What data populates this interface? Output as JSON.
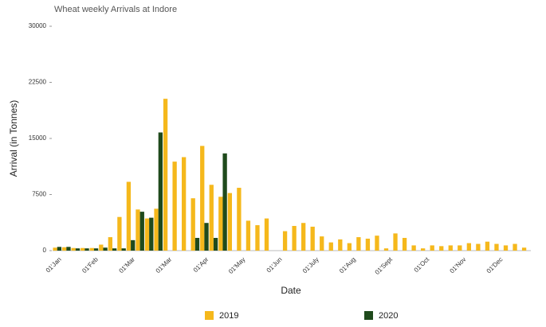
{
  "chart_data": {
    "type": "bar",
    "title": "Wheat weekly Arrivals at Indore",
    "x_label": "Date",
    "y_label": "Arrival (in Tonnes)",
    "categories": [
      "01'Jan",
      null,
      null,
      null,
      "01'Feb",
      null,
      null,
      null,
      "01'Mar",
      null,
      null,
      null,
      "01'Mar",
      null,
      null,
      null,
      "01'Apr",
      null,
      null,
      null,
      "01'May",
      null,
      null,
      null,
      "01'Jun",
      null,
      null,
      null,
      "01'July",
      null,
      null,
      null,
      "01'Aug",
      null,
      null,
      null,
      "01'Sept",
      null,
      null,
      null,
      "01'Oct",
      null,
      null,
      null,
      "01'Nov",
      null,
      null,
      null,
      "01'Dec",
      null,
      null,
      null
    ],
    "series": [
      {
        "name": "2019",
        "color": "#f5b81c",
        "values": [
          400,
          450,
          350,
          350,
          350,
          800,
          1800,
          4500,
          9200,
          5500,
          4300,
          5600,
          20300,
          11900,
          12500,
          7000,
          14000,
          8800,
          7200,
          7700,
          8400,
          4000,
          3400,
          4300,
          0,
          2600,
          3300,
          3700,
          3200,
          1900,
          1100,
          1500,
          1000,
          1800,
          1600,
          2000,
          300,
          2300,
          1700,
          700,
          300,
          700,
          600,
          700,
          700,
          1000,
          900,
          1200,
          900,
          700,
          900,
          400
        ]
      },
      {
        "name": "2020",
        "color": "#1f4a1c",
        "values": [
          500,
          500,
          300,
          300,
          300,
          400,
          300,
          300,
          1400,
          5200,
          4400,
          15800,
          null,
          null,
          null,
          1700,
          3700,
          1700,
          13000,
          null,
          null,
          null,
          null,
          null,
          null,
          null,
          null,
          null,
          null,
          null,
          null,
          null,
          null,
          null,
          null,
          null,
          null,
          null,
          null,
          null,
          null,
          null,
          null,
          null,
          null,
          null,
          null,
          null,
          null,
          null,
          null,
          null
        ]
      }
    ],
    "ylim": [
      0,
      30000
    ],
    "yticks": [
      0,
      7500,
      15000,
      22500,
      30000
    ],
    "grid": false
  }
}
